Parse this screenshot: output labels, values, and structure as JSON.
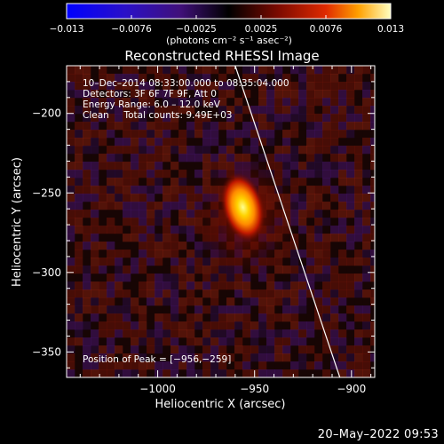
{
  "chart_data": {
    "type": "heatmap",
    "title": "Reconstructed RHESSI Image",
    "xlabel": "Heliocentric X (arcsec)",
    "ylabel": "Heliocentric Y (arcsec)",
    "colorbar": {
      "range": [
        -0.013,
        0.013
      ],
      "ticks": [
        "−0.013",
        "−0.0076",
        "−0.0025",
        "0.0025",
        "0.0076",
        "0.013"
      ],
      "unit_label": "(photons cm⁻² s⁻¹ asec⁻²)"
    },
    "xlim": [
      -1047,
      -888
    ],
    "ylim": [
      -366,
      -170
    ],
    "x_ticks": [
      -1000,
      -950,
      -900
    ],
    "x_tick_labels": [
      "−1000",
      "−950",
      "−900"
    ],
    "y_ticks": [
      -200,
      -250,
      -300,
      -350
    ],
    "y_tick_labels": [
      "−200",
      "−250",
      "−300",
      "−350"
    ],
    "info_lines": [
      "10–Dec–2014 08:33:00.000 to 08:35:04.000",
      "Detectors: 3F 6F 7F 9F, Att 0",
      "Energy Range: 6.0 – 12.0 keV",
      "Clean     Total counts: 9.49E+03"
    ],
    "peak_label": "Position of Peak = [−956,−259]",
    "peak": {
      "x": -956,
      "y": -259,
      "value": 0.013
    },
    "limb": [
      [
        -960,
        -170
      ],
      [
        -906,
        -366
      ]
    ],
    "grid": false
  },
  "footer": {
    "date": "20–May–2022 09:53"
  }
}
